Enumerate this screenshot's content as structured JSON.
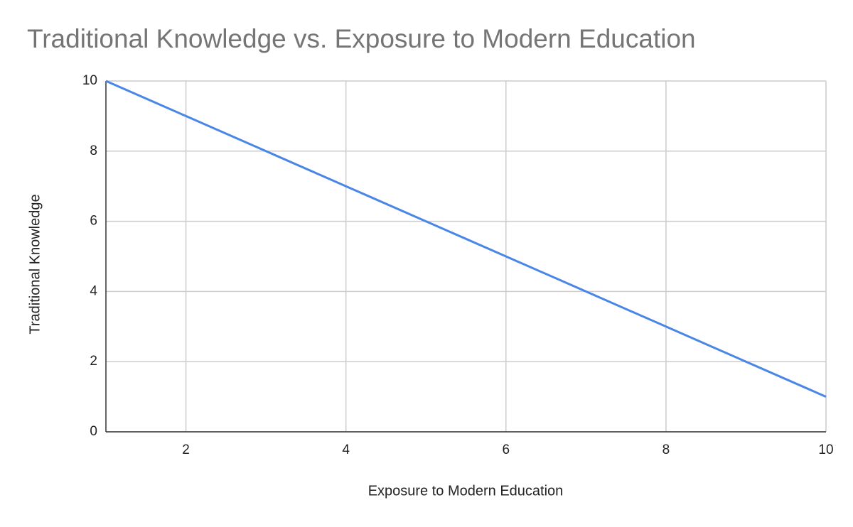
{
  "chart_data": {
    "type": "line",
    "title": "Traditional Knowledge vs. Exposure to Modern Education",
    "x_label": "Exposure to Modern Education",
    "y_label": "Traditional Knowledge",
    "x": [
      1,
      2,
      3,
      4,
      5,
      6,
      7,
      8,
      9,
      10
    ],
    "series": [
      {
        "name": "Traditional Knowledge",
        "color": "#4a86e8",
        "values": [
          10,
          9,
          8,
          7,
          6,
          5,
          4,
          3,
          2,
          1
        ]
      }
    ],
    "xlim": [
      1,
      10
    ],
    "xticks": [
      2,
      4,
      6,
      8,
      10
    ],
    "ylim": [
      0,
      10
    ],
    "yticks": [
      0,
      2,
      4,
      6,
      8,
      10
    ],
    "grid": true
  }
}
